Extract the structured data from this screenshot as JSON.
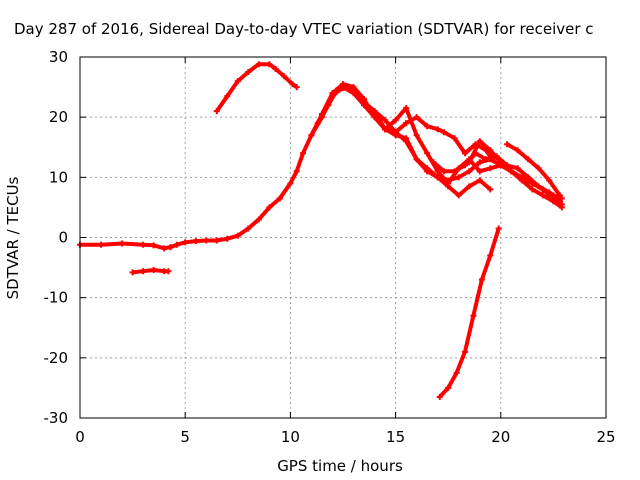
{
  "chart_data": {
    "type": "line",
    "title": "Day 287 of 2016, Sidereal Day-to-day VTEC variation (SDTVAR) for receiver c",
    "xlabel": "GPS time / hours",
    "ylabel": "SDTVAR / TECUs",
    "xlim": [
      0,
      25
    ],
    "ylim": [
      -30,
      30
    ],
    "xticks": [
      0,
      5,
      10,
      15,
      20,
      25
    ],
    "yticks": [
      -30,
      -20,
      -10,
      0,
      10,
      20,
      30
    ],
    "grid": true,
    "color": "#ff0000",
    "series": [
      {
        "name": "trace-baseline",
        "x": [
          0.0,
          1.0,
          2.0,
          3.0,
          3.5,
          4.0,
          4.3,
          4.6,
          5.0,
          5.5,
          6.0,
          6.5,
          7.0,
          7.5,
          8.0,
          8.5,
          9.0,
          9.5,
          10.0,
          10.3,
          10.6,
          11.0,
          11.5,
          12.0,
          12.5,
          13.0,
          13.5,
          14.0,
          14.5,
          15.0,
          15.5,
          16.0,
          16.5,
          17.0,
          17.5,
          18.0,
          18.5,
          19.0,
          19.5,
          20.0,
          20.5,
          21.0,
          21.5,
          22.0,
          22.5,
          22.9
        ],
        "y": [
          -1.2,
          -1.2,
          -1.0,
          -1.2,
          -1.3,
          -1.8,
          -1.6,
          -1.2,
          -0.8,
          -0.6,
          -0.5,
          -0.5,
          -0.2,
          0.3,
          1.5,
          3.0,
          5.0,
          6.5,
          9.0,
          11.0,
          14.0,
          17.0,
          20.0,
          23.5,
          25.0,
          24.0,
          22.0,
          20.0,
          18.0,
          17.0,
          16.5,
          13.0,
          11.0,
          10.0,
          9.5,
          10.0,
          11.0,
          12.5,
          13.0,
          12.0,
          11.0,
          10.0,
          9.0,
          8.0,
          7.0,
          6.5
        ]
      },
      {
        "name": "trace-arc-top",
        "x": [
          6.5,
          7.0,
          7.5,
          8.0,
          8.5,
          9.0,
          9.3,
          9.7,
          10.1,
          10.3
        ],
        "y": [
          21.0,
          23.5,
          26.0,
          27.5,
          28.8,
          28.8,
          28.0,
          26.8,
          25.5,
          25.0
        ]
      },
      {
        "name": "trace-short-low",
        "x": [
          2.5,
          3.0,
          3.5,
          4.0,
          4.2
        ],
        "y": [
          -5.8,
          -5.6,
          -5.4,
          -5.6,
          -5.6
        ]
      },
      {
        "name": "trace-rise-a",
        "x": [
          11.0,
          11.5,
          12.0,
          12.5,
          13.0,
          13.5,
          14.0,
          14.5,
          15.0,
          15.5,
          16.0,
          16.5,
          17.0,
          17.5,
          18.0,
          18.5,
          19.0,
          19.5,
          20.0,
          20.5,
          21.0,
          21.5,
          22.0,
          22.5,
          22.9
        ],
        "y": [
          17.0,
          20.5,
          24.0,
          25.5,
          25.0,
          23.0,
          20.0,
          18.0,
          19.5,
          21.5,
          17.0,
          14.0,
          11.0,
          9.0,
          11.5,
          13.0,
          11.0,
          11.5,
          12.0,
          11.0,
          9.5,
          8.0,
          7.0,
          6.0,
          5.0
        ]
      },
      {
        "name": "trace-rise-b",
        "x": [
          11.3,
          11.8,
          12.2,
          12.7,
          13.1,
          13.5,
          14.0,
          14.5,
          15.0,
          15.5,
          16.0,
          16.5,
          17.0,
          17.3,
          17.8,
          18.3,
          18.8,
          19.3,
          19.6
        ],
        "y": [
          19.0,
          22.0,
          24.5,
          24.8,
          24.0,
          22.5,
          21.0,
          19.5,
          17.5,
          19.0,
          20.0,
          18.5,
          18.0,
          17.5,
          16.5,
          14.0,
          15.5,
          14.5,
          13.0
        ]
      },
      {
        "name": "trace-drop-mid",
        "x": [
          14.0,
          14.5,
          15.0,
          15.5,
          16.0,
          16.5,
          17.0,
          17.5,
          18.0,
          18.5,
          19.0,
          19.5
        ],
        "y": [
          21.0,
          18.0,
          17.5,
          16.0,
          13.0,
          11.5,
          10.0,
          8.5,
          7.0,
          8.5,
          9.5,
          8.0
        ]
      },
      {
        "name": "trace-late-a",
        "x": [
          16.8,
          17.3,
          17.8,
          18.3,
          18.8,
          19.3,
          19.8,
          20.3,
          20.8,
          21.3,
          21.8,
          22.3,
          22.8
        ],
        "y": [
          12.5,
          11.0,
          11.0,
          12.0,
          14.0,
          13.0,
          13.5,
          12.0,
          11.5,
          10.0,
          8.5,
          7.5,
          6.0
        ]
      },
      {
        "name": "trace-late-b",
        "x": [
          18.5,
          19.0,
          19.5,
          20.0,
          20.5,
          21.0,
          21.5,
          22.0,
          22.5,
          22.9
        ],
        "y": [
          12.5,
          16.0,
          14.5,
          12.5,
          11.0,
          10.0,
          9.0,
          8.0,
          6.5,
          5.5
        ]
      },
      {
        "name": "trace-late-c",
        "x": [
          20.3,
          20.8,
          21.3,
          21.8,
          22.3,
          22.8
        ],
        "y": [
          15.5,
          14.5,
          13.0,
          11.5,
          9.5,
          7.0
        ]
      },
      {
        "name": "trace-plunge",
        "x": [
          17.1,
          17.5,
          17.9,
          18.3,
          18.7,
          19.1,
          19.5,
          19.9
        ],
        "y": [
          -26.5,
          -25.0,
          -22.5,
          -19.0,
          -13.0,
          -7.0,
          -3.0,
          1.5
        ]
      }
    ]
  }
}
